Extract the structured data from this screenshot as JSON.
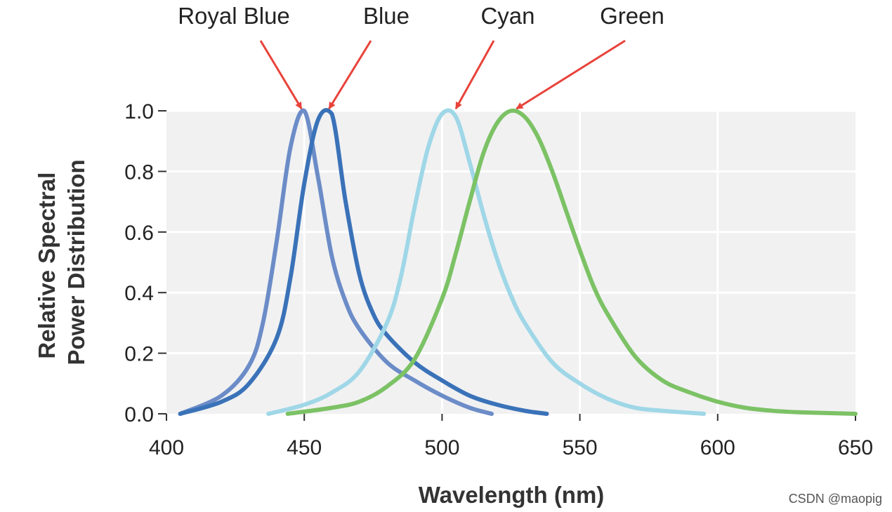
{
  "chart_data": {
    "type": "line",
    "title": "",
    "xlabel": "Wavelength (nm)",
    "ylabel": [
      "Relative Spectral",
      "Power Distribution"
    ],
    "xlim": [
      400,
      650
    ],
    "ylim": [
      0,
      1.0
    ],
    "x_ticks": [
      "400",
      "450",
      "500",
      "550",
      "600",
      "650"
    ],
    "y_ticks": [
      "0.0",
      "0.2",
      "0.4",
      "0.6",
      "0.8",
      "1.0"
    ],
    "grid": true,
    "series": [
      {
        "name": "Royal Blue",
        "color": "#6b8cc7",
        "x": [
          405,
          420,
          430,
          435,
          440,
          445,
          450,
          455,
          460,
          465,
          470,
          480,
          490,
          500,
          510,
          518
        ],
        "y": [
          0.0,
          0.06,
          0.16,
          0.3,
          0.57,
          0.88,
          1.0,
          0.78,
          0.52,
          0.37,
          0.28,
          0.17,
          0.11,
          0.06,
          0.02,
          0.0
        ]
      },
      {
        "name": "Blue",
        "color": "#3a72b8",
        "x": [
          405,
          420,
          430,
          440,
          445,
          450,
          455,
          460,
          465,
          470,
          475,
          480,
          490,
          500,
          510,
          520,
          530,
          538
        ],
        "y": [
          0.0,
          0.04,
          0.1,
          0.25,
          0.45,
          0.76,
          0.97,
          0.99,
          0.7,
          0.46,
          0.33,
          0.26,
          0.17,
          0.11,
          0.06,
          0.03,
          0.01,
          0.0
        ]
      },
      {
        "name": "Cyan",
        "color": "#9fd7e7",
        "x": [
          437,
          450,
          460,
          470,
          480,
          485,
          490,
          495,
          500,
          505,
          510,
          515,
          520,
          525,
          530,
          540,
          550,
          560,
          570,
          580,
          595
        ],
        "y": [
          0.0,
          0.03,
          0.07,
          0.14,
          0.3,
          0.45,
          0.68,
          0.88,
          0.99,
          0.98,
          0.83,
          0.66,
          0.51,
          0.39,
          0.3,
          0.17,
          0.1,
          0.05,
          0.02,
          0.01,
          0.0
        ]
      },
      {
        "name": "Green",
        "color": "#7cc265",
        "x": [
          444,
          460,
          470,
          480,
          490,
          500,
          505,
          510,
          515,
          520,
          525,
          530,
          535,
          540,
          545,
          550,
          555,
          560,
          570,
          580,
          590,
          600,
          610,
          620,
          630,
          650
        ],
        "y": [
          0.0,
          0.02,
          0.04,
          0.09,
          0.18,
          0.38,
          0.53,
          0.7,
          0.86,
          0.96,
          1.0,
          0.98,
          0.91,
          0.8,
          0.67,
          0.54,
          0.42,
          0.33,
          0.19,
          0.11,
          0.07,
          0.04,
          0.02,
          0.01,
          0.005,
          0.0
        ]
      }
    ],
    "annotations": [
      {
        "text": "Royal Blue",
        "target_x": 449,
        "target_y": 1.0
      },
      {
        "text": "Blue",
        "target_x": 459,
        "target_y": 1.0
      },
      {
        "text": "Cyan",
        "target_x": 505,
        "target_y": 1.0
      },
      {
        "text": "Green",
        "target_x": 527,
        "target_y": 1.0
      }
    ],
    "arrow_color": "#e8433a"
  },
  "watermark": "CSDN @maopig"
}
